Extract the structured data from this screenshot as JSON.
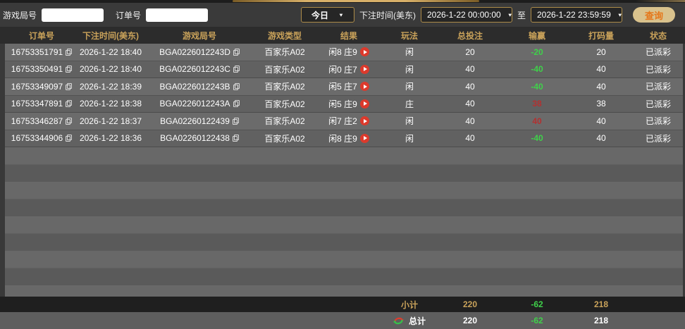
{
  "filter_bar": {
    "game_round_label": "游戏局号",
    "game_round_value": "",
    "order_label": "订单号",
    "order_value": "",
    "date_preset": "今日",
    "bet_time_label": "下注时间(美东)",
    "start_time": "2026-1-22 00:00:00",
    "range_separator": "至",
    "end_time": "2026-1-22 23:59:59",
    "query_label": "查询"
  },
  "icons": {
    "dropdown_arrow": "▼",
    "copy_icon": "double-square",
    "play_icon": "red-circle-with-triangle",
    "refresh_icon": "red-green-circular-arrows"
  },
  "table": {
    "columns": [
      "订单号",
      "下注时间(美东)",
      "游戏局号",
      "游戏类型",
      "结果",
      "玩法",
      "总投注",
      "输赢",
      "打码量",
      "状态"
    ],
    "rows": [
      {
        "order_no": "16753351791",
        "bet_time": "2026-1-22 18:40",
        "round_no": "BGA0226012243D",
        "game_type": "百家乐A02",
        "result": "闲8 庄9",
        "play": "闲",
        "total_bet": "20",
        "win_loss": "-20",
        "win_loss_color": "green",
        "turnover": "20",
        "status": "已派彩"
      },
      {
        "order_no": "16753350491",
        "bet_time": "2026-1-22 18:40",
        "round_no": "BGA0226012243C",
        "game_type": "百家乐A02",
        "result": "闲0 庄7",
        "play": "闲",
        "total_bet": "40",
        "win_loss": "-40",
        "win_loss_color": "green",
        "turnover": "40",
        "status": "已派彩"
      },
      {
        "order_no": "16753349097",
        "bet_time": "2026-1-22 18:39",
        "round_no": "BGA0226012243B",
        "game_type": "百家乐A02",
        "result": "闲5 庄7",
        "play": "闲",
        "total_bet": "40",
        "win_loss": "-40",
        "win_loss_color": "green",
        "turnover": "40",
        "status": "已派彩"
      },
      {
        "order_no": "16753347891",
        "bet_time": "2026-1-22 18:38",
        "round_no": "BGA0226012243A",
        "game_type": "百家乐A02",
        "result": "闲5 庄9",
        "play": "庄",
        "total_bet": "40",
        "win_loss": "38",
        "win_loss_color": "red",
        "turnover": "38",
        "status": "已派彩"
      },
      {
        "order_no": "16753346287",
        "bet_time": "2026-1-22 18:37",
        "round_no": "BGA02260122439",
        "game_type": "百家乐A02",
        "result": "闲7 庄2",
        "play": "闲",
        "total_bet": "40",
        "win_loss": "40",
        "win_loss_color": "red",
        "turnover": "40",
        "status": "已派彩"
      },
      {
        "order_no": "16753344906",
        "bet_time": "2026-1-22 18:36",
        "round_no": "BGA02260122438",
        "game_type": "百家乐A02",
        "result": "闲8 庄9",
        "play": "闲",
        "total_bet": "40",
        "win_loss": "-40",
        "win_loss_color": "green",
        "turnover": "40",
        "status": "已派彩"
      }
    ],
    "subtotal": {
      "label": "小计",
      "total_bet": "220",
      "win_loss": "-62",
      "turnover": "218"
    },
    "total": {
      "label": "总计",
      "total_bet": "220",
      "win_loss": "-62",
      "turnover": "218"
    }
  },
  "colors": {
    "accent_gold": "#c9a25a",
    "win_red": "#b23131",
    "loss_green": "#3fd14a",
    "query_button_bg": "#d9c28d",
    "query_button_text": "#e5771a",
    "row_gray": "#6b6b6b",
    "subtotal_bg": "#1f1f1f"
  }
}
